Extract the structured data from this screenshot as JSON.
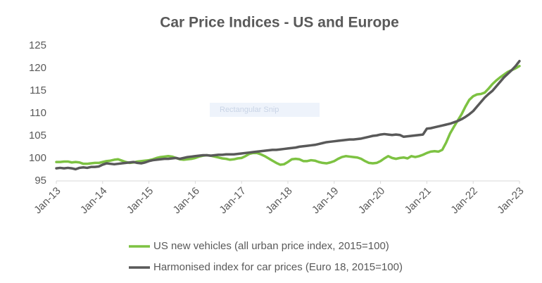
{
  "chart_data": {
    "type": "line",
    "title": "Car Price Indices - US and Europe",
    "categories": [
      "Jan-13",
      null,
      null,
      null,
      null,
      null,
      null,
      null,
      null,
      null,
      null,
      null,
      "Jan-14",
      null,
      null,
      null,
      null,
      null,
      null,
      null,
      null,
      null,
      null,
      null,
      "Jan-15",
      null,
      null,
      null,
      null,
      null,
      null,
      null,
      null,
      null,
      null,
      null,
      "Jan-16",
      null,
      null,
      null,
      null,
      null,
      null,
      null,
      null,
      null,
      null,
      null,
      "Jan-17",
      null,
      null,
      null,
      null,
      null,
      null,
      null,
      null,
      null,
      null,
      null,
      "Jan-18",
      null,
      null,
      null,
      null,
      null,
      null,
      null,
      null,
      null,
      null,
      null,
      "Jan-19",
      null,
      null,
      null,
      null,
      null,
      null,
      null,
      null,
      null,
      null,
      null,
      "Jan-20",
      null,
      null,
      null,
      null,
      null,
      null,
      null,
      null,
      null,
      null,
      null,
      "Jan-21",
      null,
      null,
      null,
      null,
      null,
      null,
      null,
      null,
      null,
      null,
      null,
      "Jan-22",
      null,
      null,
      null,
      null,
      null,
      null,
      null,
      null,
      null,
      null,
      null,
      "Jan-23"
    ],
    "series": [
      {
        "name": "US new vehicles (all urban price index, 2015=100)",
        "color": "#7dc242",
        "values": [
          99.2,
          99.2,
          99.3,
          99.3,
          99.1,
          99.2,
          99.1,
          98.8,
          98.8,
          98.9,
          99.0,
          99.0,
          99.2,
          99.4,
          99.5,
          99.7,
          99.8,
          99.5,
          99.2,
          99.0,
          99.1,
          99.3,
          99.4,
          99.5,
          99.6,
          99.8,
          100.1,
          100.3,
          100.4,
          100.5,
          100.4,
          100.1,
          99.8,
          99.7,
          99.8,
          99.9,
          100.1,
          100.4,
          100.6,
          100.7,
          100.6,
          100.4,
          100.2,
          100.0,
          99.9,
          99.7,
          99.8,
          100.0,
          100.1,
          100.5,
          101.0,
          101.2,
          101.2,
          100.9,
          100.5,
          100.0,
          99.5,
          99.0,
          98.6,
          98.7,
          99.2,
          99.8,
          99.9,
          99.8,
          99.4,
          99.4,
          99.6,
          99.5,
          99.2,
          99.0,
          98.9,
          99.1,
          99.4,
          99.9,
          100.3,
          100.5,
          100.4,
          100.3,
          100.2,
          99.9,
          99.4,
          99.0,
          98.9,
          99.0,
          99.4,
          100.0,
          100.5,
          100.1,
          99.9,
          100.1,
          100.2,
          100.0,
          100.5,
          100.3,
          100.5,
          100.8,
          101.2,
          101.5,
          101.6,
          101.5,
          101.9,
          103.5,
          105.5,
          107.0,
          108.4,
          109.8,
          111.5,
          113.0,
          113.8,
          114.2,
          114.3,
          114.6,
          115.5,
          116.5,
          117.3,
          118.0,
          118.6,
          119.2,
          119.6,
          120.0,
          120.5
        ]
      },
      {
        "name": "Harmonised index for car prices (Euro 18, 2015=100)",
        "color": "#595959",
        "values": [
          97.8,
          97.9,
          97.8,
          97.9,
          97.8,
          97.6,
          97.9,
          98.0,
          97.9,
          98.1,
          98.1,
          98.2,
          98.6,
          98.9,
          98.8,
          98.7,
          98.8,
          98.9,
          99.0,
          99.1,
          99.2,
          99.0,
          98.9,
          99.1,
          99.4,
          99.6,
          99.7,
          99.8,
          99.9,
          99.9,
          100.0,
          100.1,
          99.9,
          100.1,
          100.3,
          100.4,
          100.5,
          100.6,
          100.7,
          100.7,
          100.6,
          100.7,
          100.8,
          100.8,
          100.9,
          100.9,
          100.9,
          101.0,
          101.1,
          101.2,
          101.3,
          101.4,
          101.5,
          101.6,
          101.7,
          101.8,
          101.9,
          101.9,
          102.0,
          102.1,
          102.2,
          102.3,
          102.4,
          102.6,
          102.7,
          102.8,
          102.9,
          103.0,
          103.2,
          103.4,
          103.6,
          103.7,
          103.8,
          103.9,
          104.0,
          104.1,
          104.2,
          104.2,
          104.3,
          104.4,
          104.6,
          104.8,
          105.0,
          105.1,
          105.3,
          105.4,
          105.3,
          105.2,
          105.3,
          105.2,
          104.8,
          104.9,
          105.0,
          105.1,
          105.2,
          105.3,
          106.6,
          106.7,
          106.9,
          107.1,
          107.3,
          107.5,
          107.7,
          108.0,
          108.3,
          108.7,
          109.2,
          109.8,
          110.5,
          111.5,
          112.5,
          113.5,
          114.3,
          115.0,
          116.0,
          117.0,
          118.0,
          118.8,
          119.6,
          120.5,
          121.6
        ]
      }
    ],
    "ylim": [
      95,
      125
    ],
    "yticks": [
      95,
      100,
      105,
      110,
      115,
      120,
      125
    ],
    "grid": false,
    "legend": "bottom"
  },
  "overlay_text": "Rectangular Snip"
}
